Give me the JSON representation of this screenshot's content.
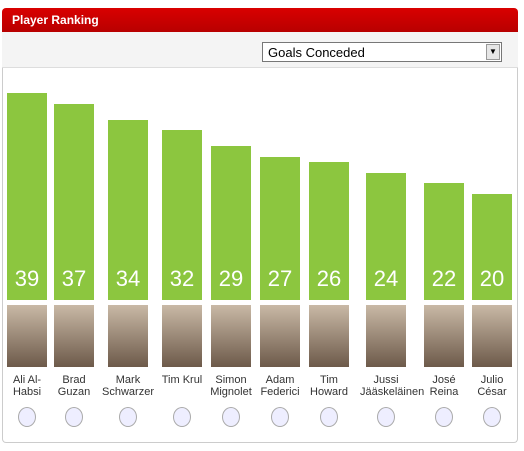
{
  "chart_data": {
    "type": "bar",
    "title": "Player Ranking",
    "metric": "Goals Conceded",
    "categories": [
      "Ali Al-Habsi",
      "Brad Guzan",
      "Mark Schwarzer",
      "Tim Krul",
      "Simon Mignolet",
      "Adam Federici",
      "Tim Howard",
      "Jussi Jääskeläinen",
      "José Reina",
      "Julio César"
    ],
    "values": [
      39,
      37,
      34,
      32,
      29,
      27,
      26,
      24,
      22,
      20
    ],
    "color": "#8cc63f"
  }
}
